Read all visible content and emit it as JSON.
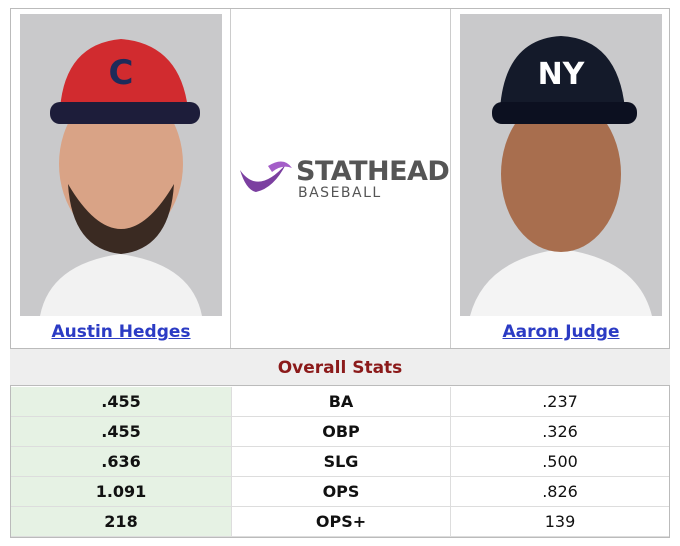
{
  "players": [
    {
      "name": "Austin Hedges"
    },
    {
      "name": "Aaron Judge"
    }
  ],
  "logo": {
    "line1": "STATHEAD",
    "line2": "BASEBALL"
  },
  "section": "Overall Stats",
  "table": {
    "rows": [
      [
        ".455",
        "BA",
        ".237"
      ],
      [
        ".455",
        "OBP",
        ".326"
      ],
      [
        ".636",
        "SLG",
        ".500"
      ],
      [
        "1.091",
        "OPS",
        ".826"
      ],
      [
        "218",
        "OPS+",
        "139"
      ]
    ]
  }
}
